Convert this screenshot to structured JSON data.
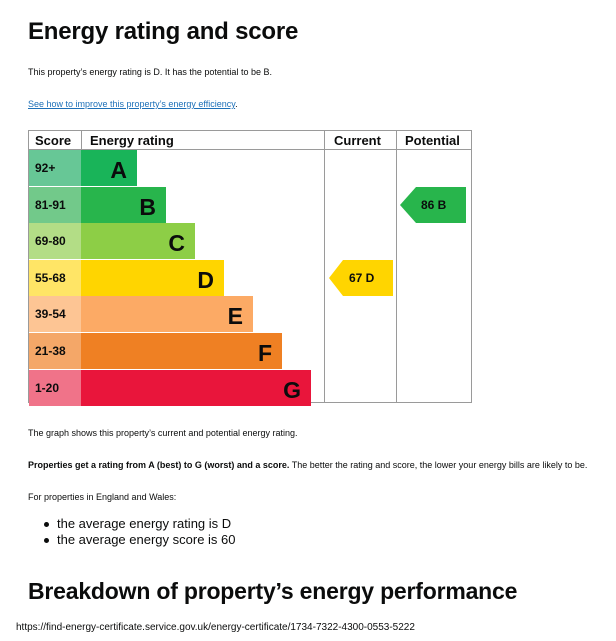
{
  "page": {
    "title": "Energy rating and score",
    "intro": "This property’s energy rating is D. It has the potential to be B.",
    "improve_link": "See how to improve this property’s energy efficiency",
    "improve_link_suffix": ".",
    "graph_caption": "The graph shows this property’s current and potential energy rating.",
    "rating_note_bold": "Properties get a rating from A (best) to G (worst) and a score.",
    "rating_note_rest": " The better the rating and score, the lower your energy bills are likely to be.",
    "regional_intro": "For properties in England and Wales:",
    "averages": [
      "the average energy rating is D",
      "the average energy score is 60"
    ],
    "breakdown_title": "Breakdown of property’s energy performance",
    "footer_url": "https://find-energy-certificate.service.gov.uk/energy-certificate/1734-7322-4300-0553-5222"
  },
  "chart_data": {
    "type": "bar",
    "headers": {
      "score": "Score",
      "rating": "Energy rating",
      "current": "Current",
      "potential": "Potential"
    },
    "bands": [
      {
        "letter": "A",
        "range": "92+",
        "min": 92,
        "max": 100,
        "color": "#19b459",
        "score_color": "#67c796"
      },
      {
        "letter": "B",
        "range": "81-91",
        "min": 81,
        "max": 91,
        "color": "#28b54c",
        "score_color": "#72c98a"
      },
      {
        "letter": "C",
        "range": "69-80",
        "min": 69,
        "max": 80,
        "color": "#8dce46",
        "score_color": "#b3dd86"
      },
      {
        "letter": "D",
        "range": "55-68",
        "min": 55,
        "max": 68,
        "color": "#ffd500",
        "score_color": "#ffe566"
      },
      {
        "letter": "E",
        "range": "39-54",
        "min": 39,
        "max": 54,
        "color": "#fcaa65",
        "score_color": "#fdc594"
      },
      {
        "letter": "F",
        "range": "21-38",
        "min": 21,
        "max": 38,
        "color": "#ef8023",
        "score_color": "#f4a768"
      },
      {
        "letter": "G",
        "range": "1-20",
        "min": 1,
        "max": 20,
        "color": "#e9153b",
        "score_color": "#f07389"
      }
    ],
    "current": {
      "score": 67,
      "letter": "D",
      "label": "67  D",
      "color": "#ffd500"
    },
    "potential": {
      "score": 86,
      "letter": "B",
      "label": "86  B",
      "color": "#28b54c"
    }
  }
}
